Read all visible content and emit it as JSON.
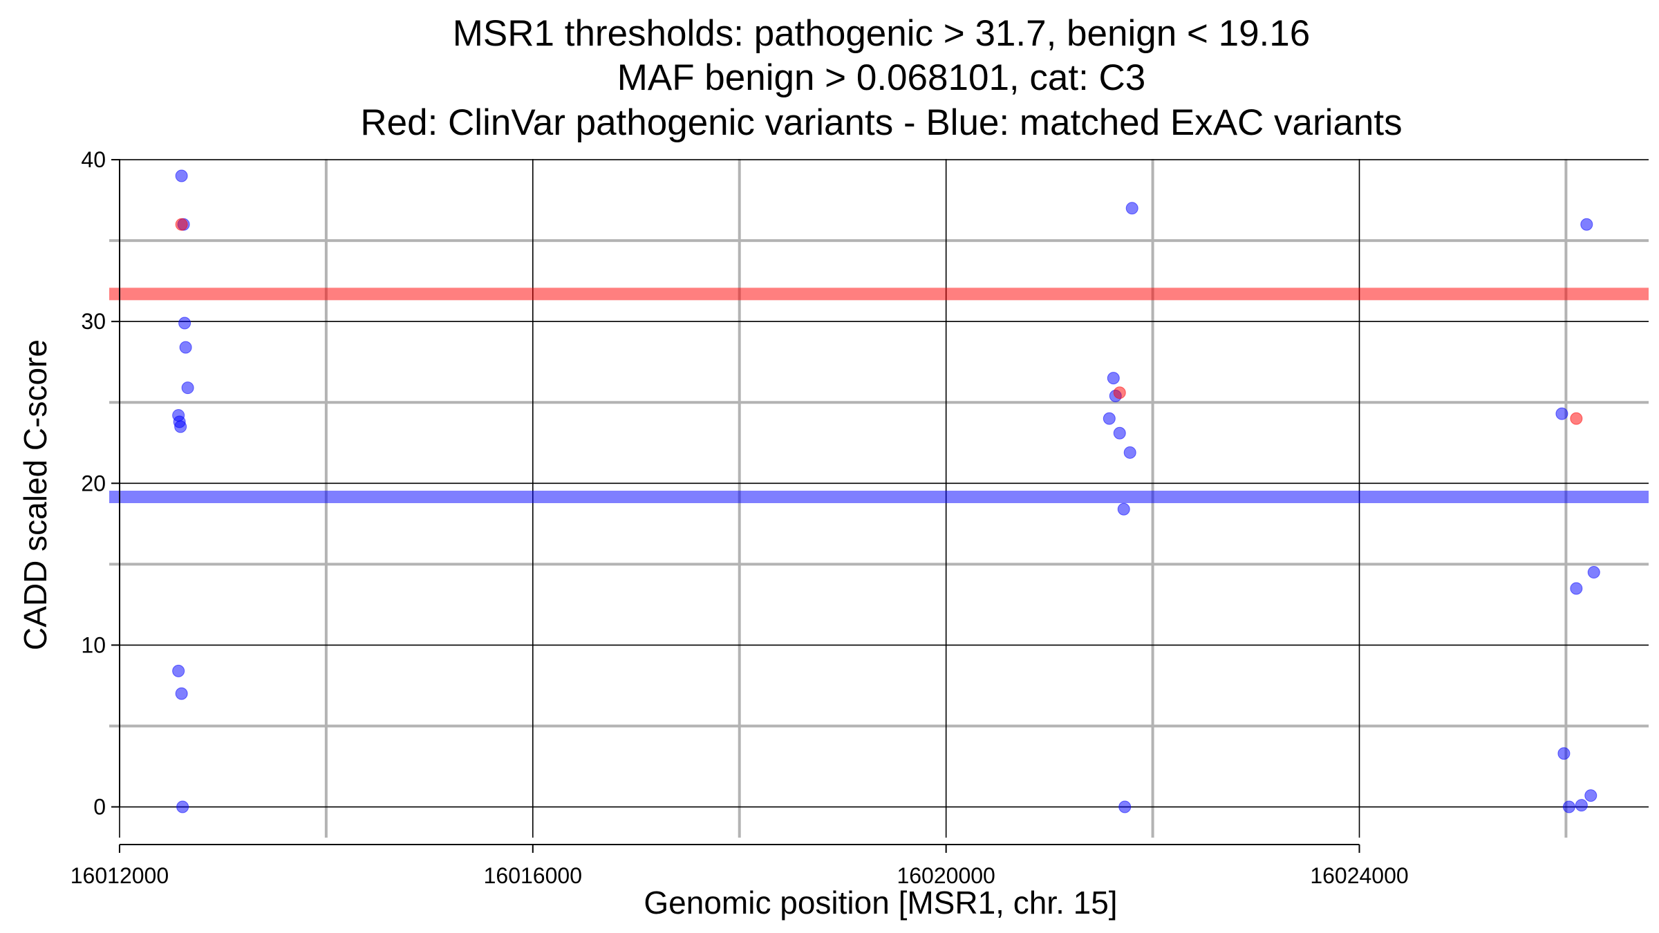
{
  "chart_data": {
    "type": "scatter",
    "title_lines": [
      "MSR1 thresholds: pathogenic > 31.7, benign < 19.16",
      "MAF benign > 0.068101, cat: C3",
      "Red: ClinVar pathogenic variants - Blue: matched ExAC variants"
    ],
    "xlabel": "Genomic position [MSR1, chr. 15]",
    "ylabel": "CADD scaled C-score",
    "xlim": [
      16011900,
      16026800
    ],
    "ylim": [
      -1.9,
      40.9
    ],
    "x_major_ticks": [
      16012000,
      16016000,
      16020000,
      16024000
    ],
    "x_tick_labels": [
      "16012000",
      "16016000",
      "16020000",
      "16024000"
    ],
    "x_minor_gridlines": [
      16014000,
      16018000,
      16022000,
      16026000
    ],
    "y_major_ticks": [
      0,
      10,
      20,
      30,
      40
    ],
    "y_tick_labels": [
      "0",
      "10",
      "20",
      "30",
      "40"
    ],
    "y_minor_gridlines": [
      5,
      15,
      25,
      35
    ],
    "thresholds": {
      "pathogenic": {
        "value": 31.7,
        "color": "#ff0000"
      },
      "benign": {
        "value": 19.16,
        "color": "#0000ff"
      }
    },
    "colors": {
      "pathogenic": "#ff0000",
      "benign": "#0000ff",
      "major_grid": "#000000",
      "minor_grid": "#b3b3b3"
    },
    "series": [
      {
        "name": "ExAC matched variants",
        "color": "#0000ff",
        "points": [
          [
            16012600,
            39.0
          ],
          [
            16012620,
            36.0
          ],
          [
            16012630,
            29.9
          ],
          [
            16012640,
            28.4
          ],
          [
            16012660,
            25.9
          ],
          [
            16012570,
            24.2
          ],
          [
            16012580,
            23.8
          ],
          [
            16012590,
            23.5
          ],
          [
            16012570,
            8.4
          ],
          [
            16012600,
            7.0
          ],
          [
            16012610,
            0.0
          ],
          [
            16021800,
            37.0
          ],
          [
            16021620,
            26.5
          ],
          [
            16021640,
            25.4
          ],
          [
            16021580,
            24.0
          ],
          [
            16021680,
            23.1
          ],
          [
            16021780,
            21.9
          ],
          [
            16021720,
            18.4
          ],
          [
            16021730,
            0.0
          ],
          [
            16026200,
            36.0
          ],
          [
            16025960,
            24.3
          ],
          [
            16026270,
            14.5
          ],
          [
            16026100,
            13.5
          ],
          [
            16025980,
            3.3
          ],
          [
            16026240,
            0.7
          ],
          [
            16026150,
            0.1
          ],
          [
            16026030,
            0.0
          ]
        ]
      },
      {
        "name": "ClinVar pathogenic variants",
        "color": "#ff0000",
        "points": [
          [
            16012600,
            36.0
          ],
          [
            16021680,
            25.6
          ],
          [
            16026100,
            24.0
          ]
        ]
      }
    ]
  }
}
